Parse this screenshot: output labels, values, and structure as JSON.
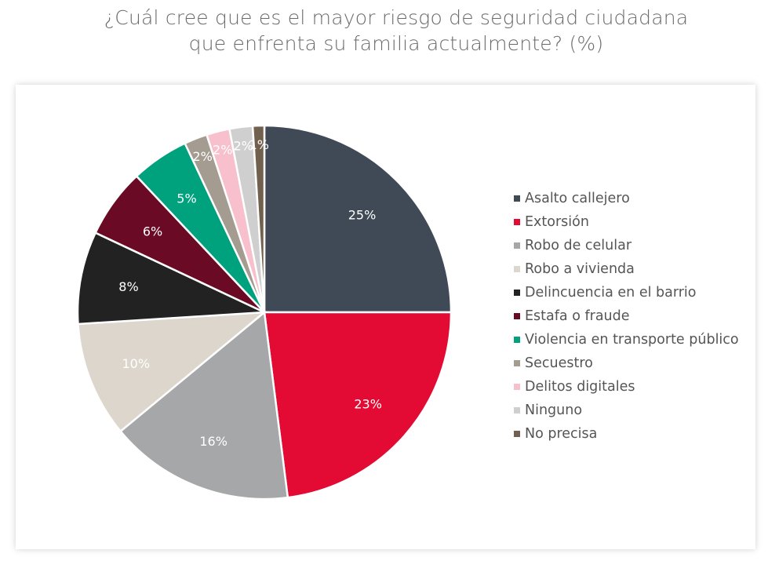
{
  "title_line1": "¿Cuál cree que es el mayor riesgo de seguridad ciudadana",
  "title_line2": "que enfrenta su familia actualmente? (%)",
  "chart_data": {
    "type": "pie",
    "title": "¿Cuál cree que es el mayor riesgo de seguridad ciudadana que enfrenta su familia actualmente? (%)",
    "legend_position": "right",
    "unit": "%",
    "slices": [
      {
        "label": "Asalto callejero",
        "value": 25,
        "color": "#3f4a56"
      },
      {
        "label": "Extorsión",
        "value": 23,
        "color": "#e30b33"
      },
      {
        "label": "Robo de celular",
        "value": 16,
        "color": "#a6a7a9"
      },
      {
        "label": "Robo a vivienda",
        "value": 10,
        "color": "#ddd6cc"
      },
      {
        "label": "Delincuencia en el barrio",
        "value": 8,
        "color": "#222222"
      },
      {
        "label": "Estafa o fraude",
        "value": 6,
        "color": "#6b0a24"
      },
      {
        "label": "Violencia en transporte público",
        "value": 5,
        "color": "#00a27e"
      },
      {
        "label": "Secuestro",
        "value": 2,
        "color": "#a59c91"
      },
      {
        "label": "Delitos digitales",
        "value": 2,
        "color": "#f7c0cc"
      },
      {
        "label": "Ninguno",
        "value": 2,
        "color": "#cfcfcf"
      },
      {
        "label": "No precisa",
        "value": 1,
        "color": "#72604e"
      }
    ]
  }
}
